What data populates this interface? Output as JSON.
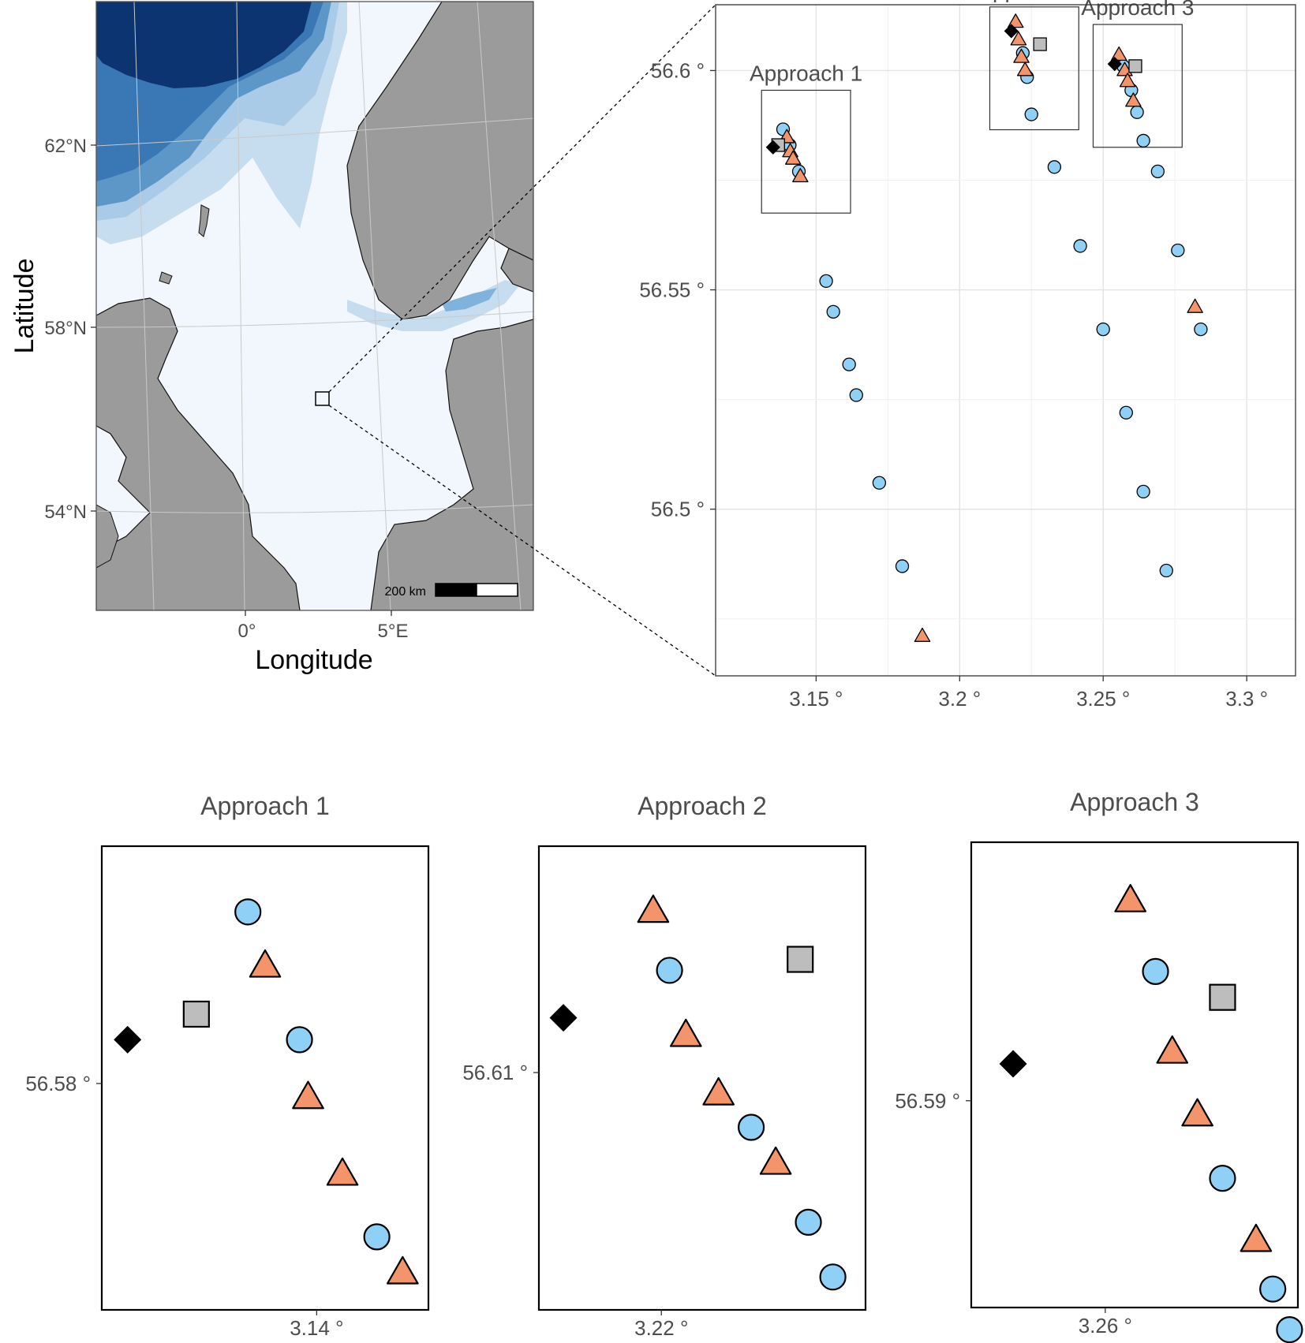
{
  "overview_map": {
    "xlabel": "Longitude",
    "ylabel": "Latitude",
    "lat_ticks": [
      "62°N",
      "58°N",
      "54°N"
    ],
    "lon_ticks": [
      "0°",
      "5°E"
    ],
    "scalebar_label": "200 km",
    "colors": {
      "land": "#9b9b9b",
      "shallow_sea": "#f2f7fd",
      "mid_sea": "#c6ddf0",
      "deep_sea": "#5c97c8",
      "abyss": "#0b3470"
    }
  },
  "inset_regions": [
    {
      "label": "Approach 1"
    },
    {
      "label": "Approach 2"
    },
    {
      "label": "Approach 3"
    }
  ],
  "marker_colors": {
    "circle": "#8fd1f6",
    "triangle": "#f4946a",
    "square": "#bdbdbd",
    "diamond": "#000000"
  },
  "chart_data": [
    {
      "type": "scatter",
      "title": "",
      "xlabel": "",
      "ylabel": "",
      "x_ticks": [
        3.15,
        3.2,
        3.25,
        3.3
      ],
      "x_tick_labels": [
        "3.15 °",
        "3.2 °",
        "3.25 °",
        "3.3 °"
      ],
      "y_ticks": [
        56.5,
        56.55,
        56.6
      ],
      "y_tick_labels": [
        "56.5 °",
        "56.55 °",
        "56.6 °"
      ],
      "xlim": [
        3.115,
        3.317
      ],
      "ylim": [
        56.462,
        56.615
      ],
      "grid": true,
      "boxes": [
        {
          "label": "Approach 1",
          "x0": 3.131,
          "x1": 3.162,
          "y0": 56.5675,
          "y1": 56.5955
        },
        {
          "label": "Approach 2",
          "x0": 3.2105,
          "x1": 3.2415,
          "y0": 56.5865,
          "y1": 56.6145
        },
        {
          "label": "Approach 3",
          "x0": 3.2465,
          "x1": 3.2775,
          "y0": 56.5825,
          "y1": 56.6105
        }
      ],
      "points": [
        {
          "x": 3.1385,
          "y": 56.5866,
          "shape": "circle"
        },
        {
          "x": 3.1398,
          "y": 56.5847,
          "shape": "triangle"
        },
        {
          "x": 3.1408,
          "y": 56.583,
          "shape": "circle"
        },
        {
          "x": 3.141,
          "y": 56.5815,
          "shape": "triangle"
        },
        {
          "x": 3.142,
          "y": 56.5798,
          "shape": "triangle"
        },
        {
          "x": 3.144,
          "y": 56.577,
          "shape": "circle"
        },
        {
          "x": 3.1445,
          "y": 56.5758,
          "shape": "triangle"
        },
        {
          "x": 3.135,
          "y": 56.5825,
          "shape": "diamond"
        },
        {
          "x": 3.1368,
          "y": 56.583,
          "shape": "square"
        },
        {
          "x": 3.1535,
          "y": 56.552,
          "shape": "circle"
        },
        {
          "x": 3.156,
          "y": 56.545,
          "shape": "circle"
        },
        {
          "x": 3.1615,
          "y": 56.533,
          "shape": "circle"
        },
        {
          "x": 3.164,
          "y": 56.526,
          "shape": "circle"
        },
        {
          "x": 3.172,
          "y": 56.506,
          "shape": "circle"
        },
        {
          "x": 3.18,
          "y": 56.487,
          "shape": "circle"
        },
        {
          "x": 3.187,
          "y": 56.471,
          "shape": "triangle"
        },
        {
          "x": 3.2195,
          "y": 56.611,
          "shape": "triangle"
        },
        {
          "x": 3.222,
          "y": 56.604,
          "shape": "circle"
        },
        {
          "x": 3.2205,
          "y": 56.607,
          "shape": "triangle"
        },
        {
          "x": 3.2215,
          "y": 56.603,
          "shape": "triangle"
        },
        {
          "x": 3.2228,
          "y": 56.6,
          "shape": "triangle"
        },
        {
          "x": 3.2235,
          "y": 56.5985,
          "shape": "circle"
        },
        {
          "x": 3.225,
          "y": 56.59,
          "shape": "circle"
        },
        {
          "x": 3.218,
          "y": 56.609,
          "shape": "diamond"
        },
        {
          "x": 3.228,
          "y": 56.606,
          "shape": "square"
        },
        {
          "x": 3.233,
          "y": 56.578,
          "shape": "circle"
        },
        {
          "x": 3.242,
          "y": 56.56,
          "shape": "circle"
        },
        {
          "x": 3.25,
          "y": 56.541,
          "shape": "circle"
        },
        {
          "x": 3.258,
          "y": 56.522,
          "shape": "circle"
        },
        {
          "x": 3.2555,
          "y": 56.6035,
          "shape": "triangle"
        },
        {
          "x": 3.257,
          "y": 56.601,
          "shape": "circle"
        },
        {
          "x": 3.2575,
          "y": 56.6,
          "shape": "triangle"
        },
        {
          "x": 3.2585,
          "y": 56.5975,
          "shape": "triangle"
        },
        {
          "x": 3.2598,
          "y": 56.5955,
          "shape": "circle"
        },
        {
          "x": 3.2605,
          "y": 56.593,
          "shape": "triangle"
        },
        {
          "x": 3.2618,
          "y": 56.5905,
          "shape": "circle"
        },
        {
          "x": 3.254,
          "y": 56.6015,
          "shape": "diamond"
        },
        {
          "x": 3.2612,
          "y": 56.601,
          "shape": "square"
        },
        {
          "x": 3.264,
          "y": 56.584,
          "shape": "circle"
        },
        {
          "x": 3.269,
          "y": 56.577,
          "shape": "circle"
        },
        {
          "x": 3.276,
          "y": 56.559,
          "shape": "circle"
        },
        {
          "x": 3.284,
          "y": 56.541,
          "shape": "circle"
        },
        {
          "x": 3.282,
          "y": 56.546,
          "shape": "triangle"
        },
        {
          "x": 3.264,
          "y": 56.504,
          "shape": "circle"
        },
        {
          "x": 3.272,
          "y": 56.486,
          "shape": "circle"
        }
      ]
    },
    {
      "type": "scatter",
      "title": "Approach 1",
      "xlabel": "",
      "ylabel": "",
      "x_ticks": [
        3.14
      ],
      "x_tick_labels": [
        "3.14 °"
      ],
      "y_ticks": [
        56.58
      ],
      "y_tick_labels": [
        "56.58 °"
      ],
      "xlim": [
        3.1375,
        3.1413
      ],
      "ylim": [
        56.5738,
        56.5865
      ],
      "grid": false,
      "points": [
        {
          "x": 3.1392,
          "y": 56.5847,
          "shape": "circle"
        },
        {
          "x": 3.1394,
          "y": 56.5832,
          "shape": "triangle"
        },
        {
          "x": 3.1386,
          "y": 56.5819,
          "shape": "square"
        },
        {
          "x": 3.1378,
          "y": 56.5812,
          "shape": "diamond"
        },
        {
          "x": 3.1398,
          "y": 56.5812,
          "shape": "circle"
        },
        {
          "x": 3.1399,
          "y": 56.5796,
          "shape": "triangle"
        },
        {
          "x": 3.1403,
          "y": 56.5775,
          "shape": "triangle"
        },
        {
          "x": 3.1407,
          "y": 56.5758,
          "shape": "circle"
        },
        {
          "x": 3.141,
          "y": 56.5748,
          "shape": "triangle"
        }
      ]
    },
    {
      "type": "scatter",
      "title": "Approach 2",
      "xlabel": "",
      "ylabel": "",
      "x_ticks": [
        3.22
      ],
      "x_tick_labels": [
        "3.22 °"
      ],
      "y_ticks": [
        56.61
      ],
      "y_tick_labels": [
        "56.61 °"
      ],
      "xlim": [
        3.2185,
        3.2225
      ],
      "ylim": [
        56.6035,
        56.6162
      ],
      "grid": false,
      "points": [
        {
          "x": 3.2199,
          "y": 56.6144,
          "shape": "triangle"
        },
        {
          "x": 3.2201,
          "y": 56.6128,
          "shape": "circle"
        },
        {
          "x": 3.2217,
          "y": 56.6131,
          "shape": "square"
        },
        {
          "x": 3.2188,
          "y": 56.6115,
          "shape": "diamond"
        },
        {
          "x": 3.2203,
          "y": 56.611,
          "shape": "triangle"
        },
        {
          "x": 3.2207,
          "y": 56.6094,
          "shape": "triangle"
        },
        {
          "x": 3.2211,
          "y": 56.6085,
          "shape": "circle"
        },
        {
          "x": 3.2214,
          "y": 56.6075,
          "shape": "triangle"
        },
        {
          "x": 3.2218,
          "y": 56.6059,
          "shape": "circle"
        },
        {
          "x": 3.2221,
          "y": 56.6044,
          "shape": "circle"
        }
      ]
    },
    {
      "type": "scatter",
      "title": "Approach 3",
      "xlabel": "",
      "ylabel": "",
      "x_ticks": [
        3.26
      ],
      "x_tick_labels": [
        "3.26 °"
      ],
      "y_ticks": [
        56.59
      ],
      "y_tick_labels": [
        "56.59 °"
      ],
      "xlim": [
        3.2584,
        3.2623
      ],
      "ylim": [
        56.5844,
        56.597
      ],
      "grid": false,
      "points": [
        {
          "x": 3.2603,
          "y": 56.5954,
          "shape": "triangle"
        },
        {
          "x": 3.2606,
          "y": 56.5935,
          "shape": "circle"
        },
        {
          "x": 3.2614,
          "y": 56.5928,
          "shape": "square"
        },
        {
          "x": 3.2589,
          "y": 56.591,
          "shape": "diamond"
        },
        {
          "x": 3.2608,
          "y": 56.5913,
          "shape": "triangle"
        },
        {
          "x": 3.2611,
          "y": 56.5896,
          "shape": "triangle"
        },
        {
          "x": 3.2614,
          "y": 56.5879,
          "shape": "circle"
        },
        {
          "x": 3.2618,
          "y": 56.5862,
          "shape": "triangle"
        },
        {
          "x": 3.262,
          "y": 56.5849,
          "shape": "circle"
        },
        {
          "x": 3.2622,
          "y": 56.5838,
          "shape": "circle"
        }
      ]
    }
  ]
}
